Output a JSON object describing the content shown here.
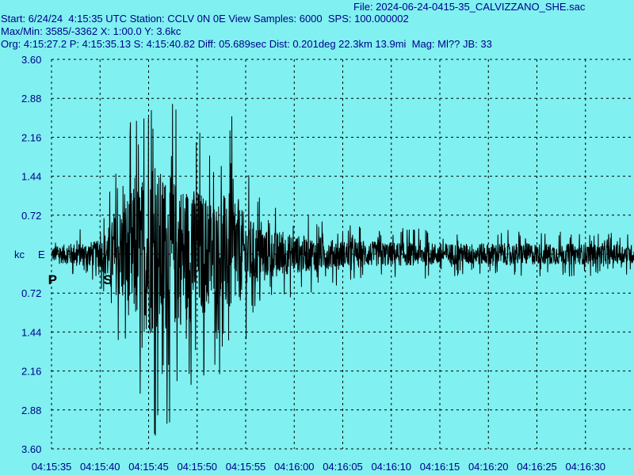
{
  "header": {
    "file": "File: 2024-06-24-0415-35_CALVIZZANO_SHE.sac",
    "start": "Start: 6/24/24  4:15:35 UTC Station: CCLV 0N 0E View Samples: 6000  SPS: 100.000002",
    "maxmin": "Max/Min: 3585/-3362 X: 1:00.0 Y: 3.6kc",
    "org": "Org: 4:15:27.2 P: 4:15:35.13 S: 4:15:40.82 Diff: 05.689sec Dist: 0.201deg 22.3km 13.9mi  Mag: Ml?? JB: 33"
  },
  "chart_data": {
    "type": "line",
    "title": "",
    "xlabel": "",
    "ylabel": "kc",
    "channel": "E",
    "ylim": [
      -3.6,
      3.6
    ],
    "y_ticks": [
      "3.60",
      "2.88",
      "2.16",
      "1.44",
      "0.72",
      "kc",
      "0.72",
      "1.44",
      "2.16",
      "2.88",
      "3.60"
    ],
    "x_ticks": [
      "04:15:35",
      "04:15:40",
      "04:15:45",
      "04:15:50",
      "04:15:55",
      "04:16:00",
      "04:16:05",
      "04:16:10",
      "04:16:15",
      "04:16:20",
      "04:16:25",
      "04:16:30"
    ],
    "x_range_seconds": [
      0,
      60
    ],
    "grid": true,
    "phase_markers": [
      {
        "label": "P",
        "time_s": 0.13
      },
      {
        "label": "S",
        "time_s": 5.82
      }
    ],
    "series": [
      {
        "max": 3.585,
        "min": -3.362,
        "envelope": [
          {
            "t": 0.0,
            "amp": 0.3
          },
          {
            "t": 2.0,
            "amp": 0.45
          },
          {
            "t": 5.0,
            "amp": 0.55
          },
          {
            "t": 6.5,
            "amp": 1.6
          },
          {
            "t": 8.0,
            "amp": 2.6
          },
          {
            "t": 9.5,
            "amp": 3.2
          },
          {
            "t": 11.0,
            "amp": 3.5
          },
          {
            "t": 13.0,
            "amp": 3.0
          },
          {
            "t": 15.0,
            "amp": 2.7
          },
          {
            "t": 17.0,
            "amp": 2.2
          },
          {
            "t": 18.5,
            "amp": 2.6
          },
          {
            "t": 20.0,
            "amp": 1.6
          },
          {
            "t": 22.0,
            "amp": 1.0
          },
          {
            "t": 25.0,
            "amp": 0.8
          },
          {
            "t": 30.0,
            "amp": 0.55
          },
          {
            "t": 40.0,
            "amp": 0.45
          },
          {
            "t": 50.0,
            "amp": 0.45
          },
          {
            "t": 60.0,
            "amp": 0.4
          }
        ]
      }
    ],
    "line_color": "#000000",
    "grid_color": "#000000",
    "background": "#80f0f0",
    "label_color": "#00008b"
  }
}
